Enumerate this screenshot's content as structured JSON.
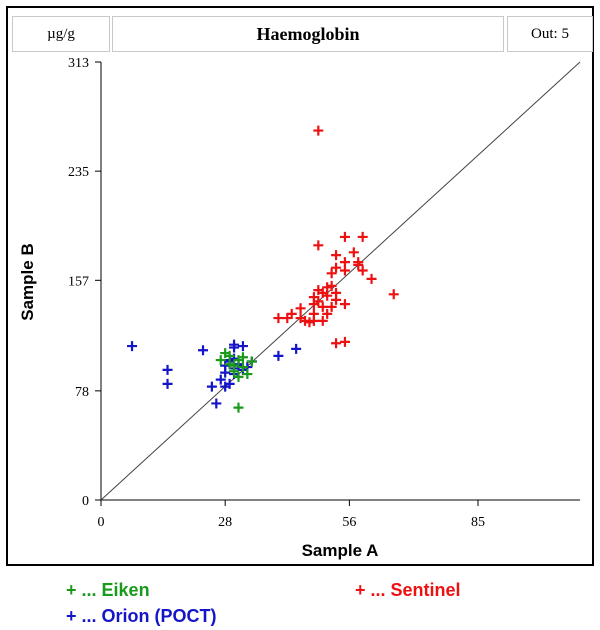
{
  "header": {
    "unit": "µg/g",
    "out_label": "Out:",
    "out_value": "5"
  },
  "legend": [
    {
      "marker": "+",
      "label": "... Eiken",
      "color": "#1a9a1a"
    },
    {
      "marker": "+",
      "label": "... Sentinel",
      "color": "#ee1111"
    },
    {
      "marker": "+",
      "label": "... Orion (POCT)",
      "color": "#1414c8"
    }
  ],
  "chart_data": {
    "type": "scatter",
    "title": "Haemoglobin",
    "xlabel": "Sample A",
    "ylabel": "Sample B",
    "xlim": [
      0,
      108
    ],
    "ylim": [
      0,
      313
    ],
    "xticks": [
      0,
      28,
      56,
      85
    ],
    "yticks": [
      0,
      78,
      157,
      235,
      313
    ],
    "grid": false,
    "identity_line": true,
    "series": [
      {
        "name": "Eiken",
        "color": "#1a9a1a",
        "points": [
          [
            27,
            100
          ],
          [
            28,
            105
          ],
          [
            29,
            97
          ],
          [
            30,
            92
          ],
          [
            30,
            96
          ],
          [
            31,
            100
          ],
          [
            31,
            88
          ],
          [
            32,
            102
          ],
          [
            32,
            95
          ],
          [
            33,
            90
          ],
          [
            31,
            66
          ],
          [
            29,
            103
          ],
          [
            34,
            99
          ]
        ]
      },
      {
        "name": "Sentinel",
        "color": "#ee1111",
        "points": [
          [
            49,
            264
          ],
          [
            49,
            182
          ],
          [
            55,
            188
          ],
          [
            53,
            175
          ],
          [
            59,
            188
          ],
          [
            55,
            170
          ],
          [
            55,
            164
          ],
          [
            53,
            166
          ],
          [
            57,
            177
          ],
          [
            58,
            170
          ],
          [
            58,
            168
          ],
          [
            59,
            164
          ],
          [
            52,
            162
          ],
          [
            51,
            152
          ],
          [
            51,
            146
          ],
          [
            52,
            153
          ],
          [
            50,
            148
          ],
          [
            49,
            150
          ],
          [
            48,
            145
          ],
          [
            49,
            142
          ],
          [
            48,
            140
          ],
          [
            50,
            138
          ],
          [
            53,
            143
          ],
          [
            53,
            148
          ],
          [
            55,
            140
          ],
          [
            52,
            138
          ],
          [
            51,
            133
          ],
          [
            48,
            133
          ],
          [
            47,
            127
          ],
          [
            45,
            137
          ],
          [
            43,
            133
          ],
          [
            42,
            130
          ],
          [
            40,
            130
          ],
          [
            48,
            128
          ],
          [
            53,
            112
          ],
          [
            55,
            113
          ],
          [
            61,
            158
          ],
          [
            66,
            147
          ],
          [
            50,
            128
          ],
          [
            45,
            130
          ],
          [
            46,
            128
          ]
        ]
      },
      {
        "name": "Orion (POCT)",
        "color": "#1414c8",
        "points": [
          [
            7,
            110
          ],
          [
            15,
            93
          ],
          [
            15,
            83
          ],
          [
            23,
            107
          ],
          [
            25,
            81
          ],
          [
            27,
            86
          ],
          [
            28,
            91
          ],
          [
            28,
            96
          ],
          [
            29,
            99
          ],
          [
            29,
            100
          ],
          [
            30,
            109
          ],
          [
            30,
            101
          ],
          [
            30,
            90
          ],
          [
            31,
            97
          ],
          [
            31,
            96
          ],
          [
            32,
            93
          ],
          [
            33,
            95
          ],
          [
            34,
            99
          ],
          [
            26,
            69
          ],
          [
            28,
            81
          ],
          [
            29,
            83
          ],
          [
            30,
            111
          ],
          [
            40,
            103
          ],
          [
            44,
            108
          ],
          [
            32,
            110
          ],
          [
            30,
            94
          ]
        ]
      }
    ]
  }
}
